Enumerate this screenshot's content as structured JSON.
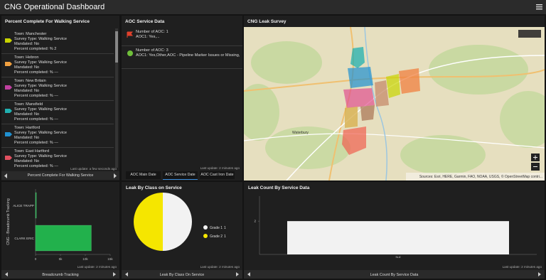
{
  "header": {
    "title": "CNG Operational Dashboard"
  },
  "walking": {
    "title": "Percent Complete For Walking Service",
    "items": [
      {
        "lines": [
          "Town: Manchester",
          "Survey Type: Walking Service",
          "Mandated: No",
          "Percent completed: % 2"
        ],
        "color": "#c8d400"
      },
      {
        "lines": [
          "Town: Hebron",
          "Survey Type: Walking Service",
          "Mandated: No",
          "Percent completed: % ---"
        ],
        "color": "#f0a040"
      },
      {
        "lines": [
          "Town: New Britain",
          "Survey Type: Walking Service",
          "Mandated: No",
          "Percent completed: % ---"
        ],
        "color": "#c040a0"
      },
      {
        "lines": [
          "Town: Mansfield",
          "Survey Type: Walking Service",
          "Mandated: No",
          "Percent completed: % ---"
        ],
        "color": "#20b0b0"
      },
      {
        "lines": [
          "Town: Hartford",
          "Survey Type: Walking Service",
          "Mandated: No",
          "Percent completed: % ---"
        ],
        "color": "#2090d0"
      },
      {
        "lines": [
          "Town: East Hartford",
          "Survey Type: Walking Service",
          "Mandated: No",
          "Percent completed: % ---"
        ],
        "color": "#e05060"
      }
    ],
    "last_update": "Last update: a few seconds ago",
    "footer": "Percent Complete For Walking Service"
  },
  "aoc": {
    "title": "AOC Service Data",
    "items": [
      {
        "lines": [
          "Number of AOC: 1",
          "AOC1: Yes,..."
        ],
        "color": "#e0402c"
      },
      {
        "lines": [
          "Number of AOC: 3",
          "AOC1: Yes,Other,AOC - Pipeline Marker Issues or Missing,"
        ],
        "color": "#6fbf3a"
      }
    ],
    "tabs": [
      "AOC Main Date",
      "AOC Service Date",
      "AOC Cast Iron Date"
    ],
    "last_update": "Last update: 2 minutes ago"
  },
  "map": {
    "title": "CNG Leak Survey",
    "places": [
      "Waterbury"
    ],
    "attribution": "Sources: Esri, HERE, Garmin, FAO, NOAA, USGS, © OpenStreetMap contri..."
  },
  "chart_data": [
    {
      "type": "bar",
      "orientation": "horizontal",
      "y_label": "CNG - Breadcrumb Tracking",
      "categories": [
        "ALICE TRAPP",
        "CLARK ERIC"
      ],
      "values": [
        150,
        11200
      ],
      "color": "#22b14c",
      "xlim": [
        0,
        15000
      ],
      "xticks": [
        0,
        {
          "value": 5000,
          "label": "5k"
        },
        {
          "value": 10000,
          "label": "10k"
        },
        {
          "value": 15000,
          "label": "15k"
        }
      ],
      "last_update": "Last update: 2 minutes ago",
      "footer": "Breadcrumb Tracking"
    },
    {
      "type": "pie",
      "title": "Leak By Class on Service",
      "categories": [
        "Grade 1",
        "Grade 2"
      ],
      "values": [
        1,
        1
      ],
      "colors": [
        "#f2f2f2",
        "#f5e600"
      ],
      "last_update": "Last update: 2 minutes ago",
      "footer": "Leak By Class On Service"
    },
    {
      "type": "bar",
      "orientation": "vertical",
      "title": "Leak Count By Service Data",
      "categories": [
        "Null"
      ],
      "values": [
        2
      ],
      "color": "#f2f2f2",
      "ylim": [
        0,
        3.5
      ],
      "yticks": [
        2
      ],
      "last_update": "Last update: 2 minutes ago",
      "footer": "Leak Count By Service Data"
    }
  ]
}
